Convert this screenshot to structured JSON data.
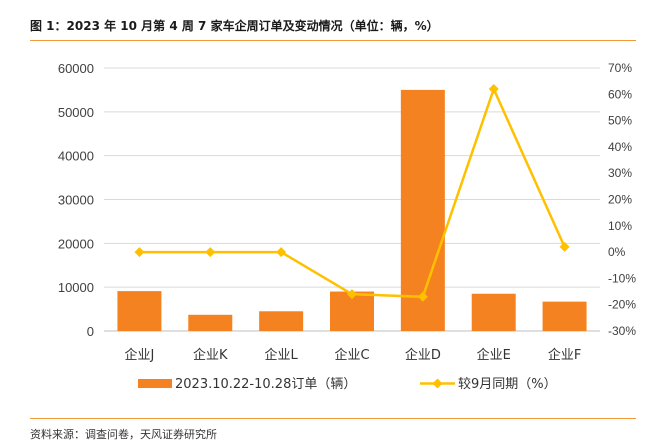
{
  "title": "图 1：2023 年 10 月第 4 周 7 家车企周订单及变动情况（单位：辆，%）",
  "source": "资料来源：调查问卷，天风证券研究所",
  "colors": {
    "bar": "#f58220",
    "line": "#ffc000",
    "rule": "#f29a3a",
    "grid": "#d9d9d9"
  },
  "chart_data": {
    "type": "bar",
    "categories": [
      "企业J",
      "企业K",
      "企业L",
      "企业C",
      "企业D",
      "企业E",
      "企业F"
    ],
    "series": [
      {
        "name": "2023.10.22-10.28订单（辆）",
        "type": "bar",
        "axis": "left",
        "values": [
          9100,
          3700,
          4500,
          9000,
          55000,
          8500,
          6700
        ]
      },
      {
        "name": "较9月同期（%）",
        "type": "line",
        "axis": "right",
        "values": [
          0,
          0,
          0,
          -16,
          -17,
          62,
          2
        ]
      }
    ],
    "y_left": {
      "min": 0,
      "max": 60000,
      "ticks": [
        "0",
        "10000",
        "20000",
        "30000",
        "40000",
        "50000",
        "60000"
      ]
    },
    "y_right": {
      "min": -30,
      "max": 70,
      "ticks": [
        "-30%",
        "-20%",
        "-10%",
        "0%",
        "10%",
        "20%",
        "30%",
        "40%",
        "50%",
        "60%",
        "70%"
      ]
    },
    "grid": true,
    "legend": "bottom"
  }
}
